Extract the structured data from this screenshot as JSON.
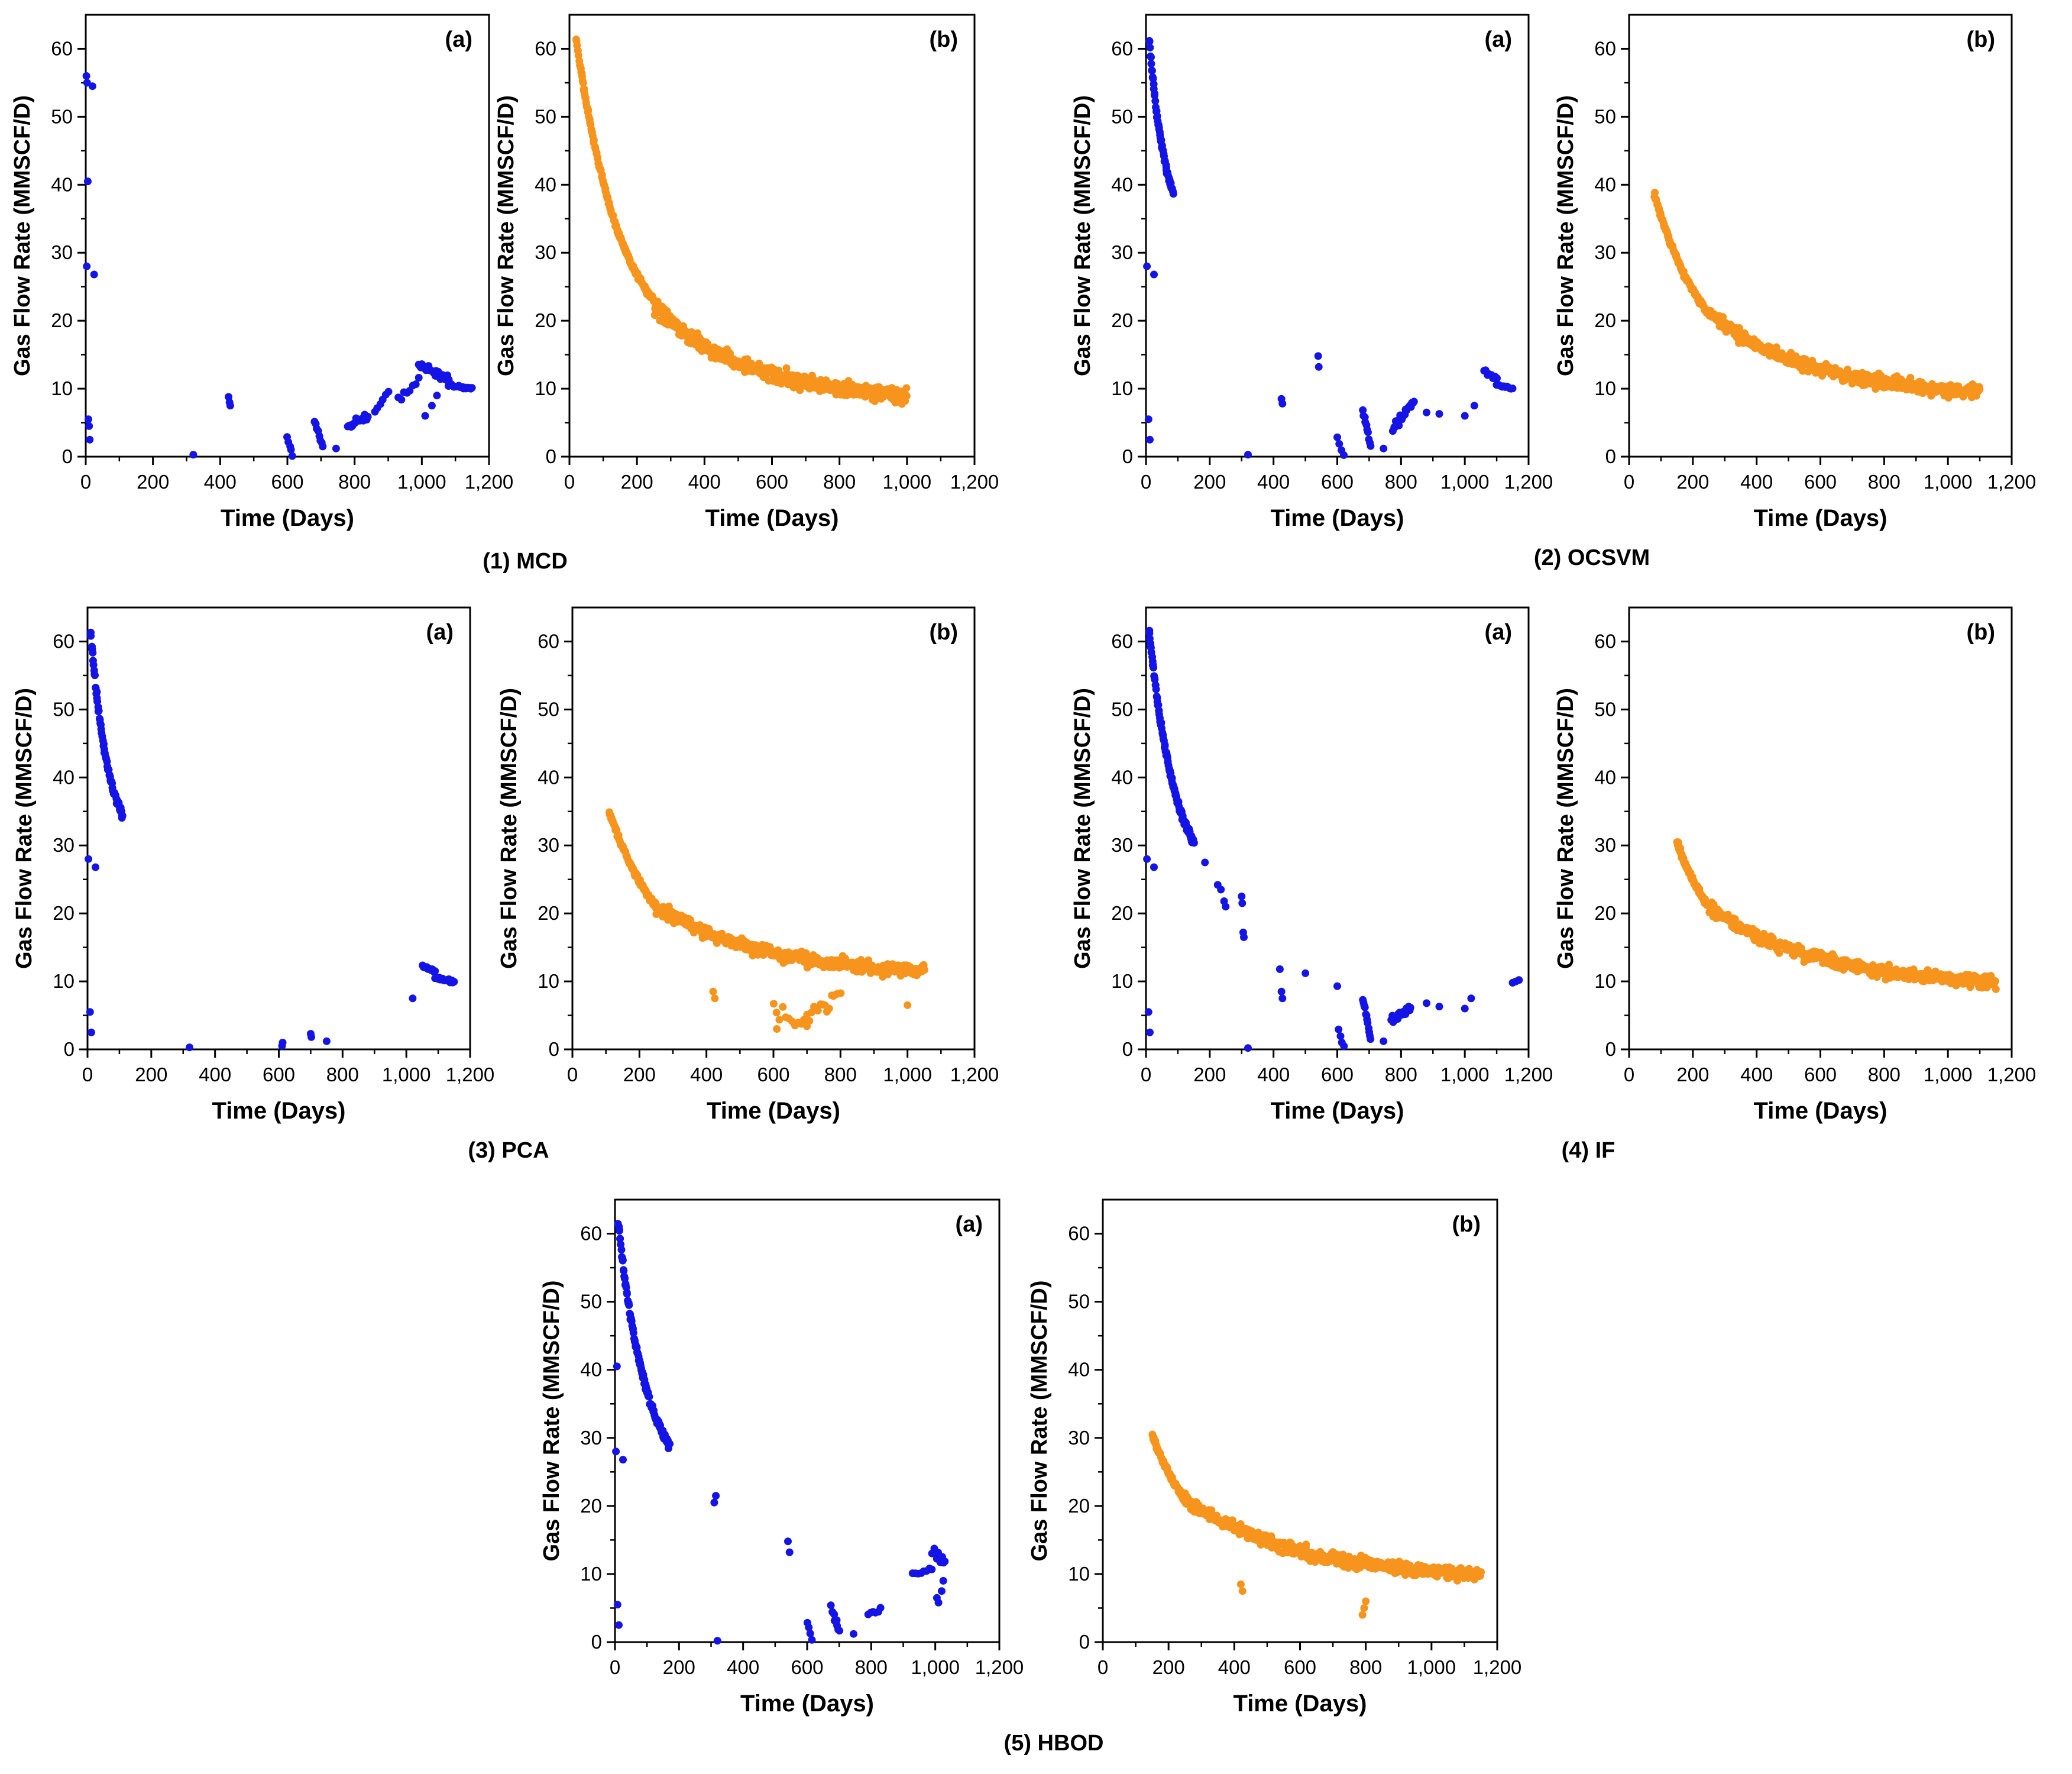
{
  "axes_common": {
    "xlabel": "Time (Days)",
    "ylabel": "Gas Flow Rate (MMSCF/D)",
    "xlim": [
      0,
      1200
    ],
    "ylim": [
      0,
      65
    ],
    "xticks": [
      0,
      200,
      400,
      600,
      800,
      1000,
      1200
    ],
    "xtick_labels": [
      "0",
      "200",
      "400",
      "600",
      "800",
      "1,000",
      "1,200"
    ],
    "yticks": [
      0,
      10,
      20,
      30,
      40,
      50,
      60
    ],
    "ytick_labels": [
      "0",
      "10",
      "20",
      "30",
      "40",
      "50",
      "60"
    ]
  },
  "colors": {
    "anomaly": "#1414e6",
    "normal": "#f7941d"
  },
  "methods": [
    {
      "id": "mcd",
      "caption": "(1) MCD"
    },
    {
      "id": "ocsvm",
      "caption": "(2) OCSVM"
    },
    {
      "id": "pca",
      "caption": "(3) PCA"
    },
    {
      "id": "if",
      "caption": "(4) IF"
    },
    {
      "id": "hbod",
      "caption": "(5) HBOD"
    }
  ],
  "chart_data": [
    {
      "type": "scatter",
      "method": "mcd",
      "panel": "(a)",
      "color": "#1414e6",
      "xlabel": "Time (Days)",
      "ylabel": "Gas Flow Rate (MMSCF/D)",
      "xlim": [
        0,
        1200
      ],
      "ylim": [
        0,
        65
      ],
      "clusters": [
        {
          "points": [
            [
              2,
              56
            ],
            [
              4,
              55
            ],
            [
              6,
              40.5
            ],
            [
              3,
              28
            ],
            [
              8,
              5.5
            ],
            [
              10,
              4.5
            ],
            [
              12,
              2.5
            ],
            [
              20,
              54.5
            ],
            [
              25,
              26.8
            ]
          ]
        },
        {
          "points": [
            [
              320,
              0.3
            ],
            [
              425,
              8.8
            ],
            [
              428,
              8.0
            ],
            [
              430,
              7.5
            ]
          ]
        },
        {
          "x0": 600,
          "x1": 615,
          "y0": 2.8,
          "y1": 0.3,
          "n": 5,
          "jitter": 0.4
        },
        {
          "x0": 680,
          "x1": 705,
          "y0": 5.2,
          "y1": 1.5,
          "n": 8,
          "jitter": 0.6
        },
        {
          "points": [
            [
              745,
              1.2
            ]
          ]
        },
        {
          "x0": 780,
          "x1": 840,
          "y0": 4.5,
          "y1": 6.0,
          "n": 18,
          "jitter": 0.8
        },
        {
          "x0": 860,
          "x1": 900,
          "y0": 6.5,
          "y1": 9.5,
          "n": 6,
          "jitter": 0.6
        },
        {
          "x0": 930,
          "x1": 990,
          "y0": 8.5,
          "y1": 11.5,
          "n": 8,
          "jitter": 0.8
        },
        {
          "x0": 990,
          "x1": 1080,
          "y0": 13.5,
          "y1": 11.5,
          "n": 30,
          "jitter": 0.8
        },
        {
          "x0": 1080,
          "x1": 1150,
          "y0": 10.5,
          "y1": 10.0,
          "n": 20,
          "jitter": 0.3
        },
        {
          "points": [
            [
              1010,
              6.0
            ],
            [
              1030,
              7.5
            ],
            [
              1045,
              9.0
            ]
          ]
        }
      ]
    },
    {
      "type": "scatter",
      "method": "mcd",
      "panel": "(b)",
      "color": "#f7941d",
      "xlabel": "Time (Days)",
      "ylabel": "Gas Flow Rate (MMSCF/D)",
      "xlim": [
        0,
        1200
      ],
      "ylim": [
        0,
        65
      ],
      "clusters": [
        {
          "curve": "decay",
          "x0": 20,
          "x1": 250,
          "y0": 61.5,
          "y1": 23,
          "k": 0.0075,
          "n": 160,
          "jitter": 0.6
        },
        {
          "curve": "decay",
          "x0": 250,
          "x1": 1000,
          "y0": 22,
          "y1": 9,
          "k": 0.0035,
          "n": 420,
          "jitter": 1.6
        }
      ]
    },
    {
      "type": "scatter",
      "method": "ocsvm",
      "panel": "(a)",
      "color": "#1414e6",
      "xlabel": "Time (Days)",
      "ylabel": "Gas Flow Rate (MMSCF/D)",
      "xlim": [
        0,
        1200
      ],
      "ylim": [
        0,
        65
      ],
      "clusters": [
        {
          "curve": "decay",
          "x0": 10,
          "x1": 85,
          "y0": 61.5,
          "y1": 39,
          "k": 0.02,
          "n": 60,
          "jitter": 0.8
        },
        {
          "points": [
            [
              3,
              28
            ],
            [
              8,
              5.5
            ],
            [
              12,
              2.5
            ],
            [
              25,
              26.8
            ]
          ]
        },
        {
          "points": [
            [
              320,
              0.3
            ],
            [
              425,
              8.5
            ],
            [
              428,
              7.8
            ],
            [
              540,
              14.8
            ],
            [
              542,
              13.2
            ]
          ]
        },
        {
          "x0": 600,
          "x1": 620,
          "y0": 2.8,
          "y1": 0.3,
          "n": 4,
          "jitter": 0.4
        },
        {
          "x0": 680,
          "x1": 705,
          "y0": 6.8,
          "y1": 1.5,
          "n": 10,
          "jitter": 0.6
        },
        {
          "points": [
            [
              745,
              1.2
            ]
          ]
        },
        {
          "x0": 775,
          "x1": 840,
          "y0": 4.0,
          "y1": 8.0,
          "n": 22,
          "jitter": 1.0
        },
        {
          "points": [
            [
              880,
              6.5
            ],
            [
              920,
              6.3
            ],
            [
              1000,
              6.0
            ],
            [
              1030,
              7.5
            ]
          ]
        },
        {
          "x0": 1060,
          "x1": 1100,
          "y0": 12.5,
          "y1": 11.5,
          "n": 8,
          "jitter": 0.4
        },
        {
          "x0": 1100,
          "x1": 1150,
          "y0": 10.5,
          "y1": 10.0,
          "n": 12,
          "jitter": 0.3
        }
      ]
    },
    {
      "type": "scatter",
      "method": "ocsvm",
      "panel": "(b)",
      "color": "#f7941d",
      "xlabel": "Time (Days)",
      "ylabel": "Gas Flow Rate (MMSCF/D)",
      "xlim": [
        0,
        1200
      ],
      "ylim": [
        0,
        65
      ],
      "clusters": [
        {
          "curve": "decay",
          "x0": 80,
          "x1": 250,
          "y0": 38.5,
          "y1": 21,
          "k": 0.006,
          "n": 110,
          "jitter": 0.6
        },
        {
          "curve": "decay",
          "x0": 250,
          "x1": 1100,
          "y0": 21,
          "y1": 9.5,
          "k": 0.003,
          "n": 430,
          "jitter": 1.4
        }
      ]
    },
    {
      "type": "scatter",
      "method": "pca",
      "panel": "(a)",
      "color": "#1414e6",
      "xlabel": "Time (Days)",
      "ylabel": "Gas Flow Rate (MMSCF/D)",
      "xlim": [
        0,
        1200
      ],
      "ylim": [
        0,
        65
      ],
      "clusters": [
        {
          "curve": "decay",
          "x0": 10,
          "x1": 110,
          "y0": 61.5,
          "y1": 34.5,
          "k": 0.018,
          "n": 70,
          "jitter": 0.8
        },
        {
          "points": [
            [
              3,
              28
            ],
            [
              8,
              5.5
            ],
            [
              12,
              2.5
            ],
            [
              25,
              26.8
            ]
          ]
        },
        {
          "points": [
            [
              320,
              0.3
            ],
            [
              610,
              0.5
            ],
            [
              612,
              1.0
            ],
            [
              700,
              2.3
            ],
            [
              702,
              1.8
            ],
            [
              750,
              1.2
            ]
          ]
        },
        {
          "points": [
            [
              1020,
              7.5
            ]
          ]
        },
        {
          "x0": 1050,
          "x1": 1090,
          "y0": 12.3,
          "y1": 11.5,
          "n": 10,
          "jitter": 0.3
        },
        {
          "x0": 1090,
          "x1": 1150,
          "y0": 10.5,
          "y1": 10.0,
          "n": 16,
          "jitter": 0.3
        }
      ]
    },
    {
      "type": "scatter",
      "method": "pca",
      "panel": "(b)",
      "color": "#f7941d",
      "xlabel": "Time (Days)",
      "ylabel": "Gas Flow Rate (MMSCF/D)",
      "xlim": [
        0,
        1200
      ],
      "ylim": [
        0,
        65
      ],
      "clusters": [
        {
          "curve": "decay",
          "x0": 110,
          "x1": 250,
          "y0": 35,
          "y1": 21,
          "k": 0.006,
          "n": 90,
          "jitter": 0.6
        },
        {
          "curve": "decay",
          "x0": 250,
          "x1": 1050,
          "y0": 21,
          "y1": 11.5,
          "k": 0.003,
          "n": 380,
          "jitter": 1.4
        },
        {
          "x0": 600,
          "x1": 700,
          "y0": 6.0,
          "y1": 3.5,
          "n": 12,
          "jitter": 1.5
        },
        {
          "x0": 700,
          "x1": 800,
          "y0": 5.0,
          "y1": 8.0,
          "n": 16,
          "jitter": 1.5
        },
        {
          "points": [
            [
              420,
              8.5
            ],
            [
              425,
              7.5
            ],
            [
              610,
              3.0
            ],
            [
              1000,
              6.5
            ]
          ]
        }
      ]
    },
    {
      "type": "scatter",
      "method": "if",
      "panel": "(a)",
      "color": "#1414e6",
      "xlabel": "Time (Days)",
      "ylabel": "Gas Flow Rate (MMSCF/D)",
      "xlim": [
        0,
        1200
      ],
      "ylim": [
        0,
        65
      ],
      "clusters": [
        {
          "curve": "decay",
          "x0": 10,
          "x1": 150,
          "y0": 61.5,
          "y1": 30.5,
          "k": 0.012,
          "n": 110,
          "jitter": 0.8
        },
        {
          "points": [
            [
              3,
              28
            ],
            [
              8,
              5.5
            ],
            [
              12,
              2.5
            ],
            [
              25,
              26.8
            ]
          ]
        },
        {
          "points": [
            [
              185,
              27.5
            ],
            [
              225,
              24.2
            ],
            [
              235,
              23.5
            ],
            [
              245,
              21.8
            ],
            [
              250,
              21.0
            ],
            [
              300,
              22.5
            ],
            [
              302,
              21.5
            ],
            [
              305,
              17.2
            ],
            [
              307,
              16.5
            ]
          ]
        },
        {
          "points": [
            [
              320,
              0.2
            ],
            [
              420,
              11.8
            ],
            [
              425,
              8.5
            ],
            [
              428,
              7.5
            ],
            [
              500,
              11.2
            ],
            [
              600,
              9.3
            ]
          ]
        },
        {
          "x0": 605,
          "x1": 620,
          "y0": 2.8,
          "y1": 0.3,
          "n": 4,
          "jitter": 0.4
        },
        {
          "x0": 680,
          "x1": 705,
          "y0": 7.5,
          "y1": 1.5,
          "n": 12,
          "jitter": 0.6
        },
        {
          "points": [
            [
              745,
              1.2
            ]
          ]
        },
        {
          "x0": 770,
          "x1": 830,
          "y0": 4.5,
          "y1": 6.0,
          "n": 20,
          "jitter": 0.8
        },
        {
          "points": [
            [
              880,
              6.8
            ],
            [
              920,
              6.3
            ],
            [
              1000,
              6.0
            ],
            [
              1020,
              7.5
            ],
            [
              1150,
              9.8
            ],
            [
              1160,
              10.0
            ],
            [
              1170,
              10.2
            ]
          ]
        }
      ]
    },
    {
      "type": "scatter",
      "method": "if",
      "panel": "(b)",
      "color": "#f7941d",
      "xlabel": "Time (Days)",
      "ylabel": "Gas Flow Rate (MMSCF/D)",
      "xlim": [
        0,
        1200
      ],
      "ylim": [
        0,
        65
      ],
      "clusters": [
        {
          "curve": "decay",
          "x0": 150,
          "x1": 250,
          "y0": 30.5,
          "y1": 21,
          "k": 0.007,
          "n": 70,
          "jitter": 0.6
        },
        {
          "curve": "decay",
          "x0": 250,
          "x1": 1150,
          "y0": 21,
          "y1": 10,
          "k": 0.003,
          "n": 430,
          "jitter": 1.4
        }
      ]
    },
    {
      "type": "scatter",
      "method": "hbod",
      "panel": "(a)",
      "color": "#1414e6",
      "xlabel": "Time (Days)",
      "ylabel": "Gas Flow Rate (MMSCF/D)",
      "xlim": [
        0,
        1200
      ],
      "ylim": [
        0,
        65
      ],
      "clusters": [
        {
          "curve": "decay",
          "x0": 10,
          "x1": 170,
          "y0": 61.5,
          "y1": 29,
          "k": 0.011,
          "n": 120,
          "jitter": 0.8
        },
        {
          "points": [
            [
              3,
              28
            ],
            [
              6,
              40.5
            ],
            [
              8,
              5.5
            ],
            [
              12,
              2.5
            ],
            [
              25,
              26.8
            ]
          ]
        },
        {
          "points": [
            [
              310,
              20.5
            ],
            [
              315,
              21.5
            ],
            [
              320,
              0.2
            ],
            [
              540,
              14.8
            ],
            [
              545,
              13.2
            ]
          ]
        },
        {
          "x0": 600,
          "x1": 615,
          "y0": 2.8,
          "y1": 0.3,
          "n": 4,
          "jitter": 0.4
        },
        {
          "x0": 675,
          "x1": 700,
          "y0": 5.2,
          "y1": 1.5,
          "n": 10,
          "jitter": 0.6
        },
        {
          "points": [
            [
              745,
              1.2
            ]
          ]
        },
        {
          "x0": 790,
          "x1": 830,
          "y0": 4.0,
          "y1": 4.8,
          "n": 6,
          "jitter": 0.4
        },
        {
          "x0": 930,
          "x1": 990,
          "y0": 9.8,
          "y1": 10.8,
          "n": 8,
          "jitter": 0.5
        },
        {
          "x0": 990,
          "x1": 1030,
          "y0": 13.5,
          "y1": 11.5,
          "n": 12,
          "jitter": 1.2
        },
        {
          "points": [
            [
              1005,
              6.5
            ],
            [
              1010,
              5.8
            ],
            [
              1020,
              7.5
            ],
            [
              1025,
              9.0
            ]
          ]
        }
      ]
    },
    {
      "type": "scatter",
      "method": "hbod",
      "panel": "(b)",
      "color": "#f7941d",
      "xlabel": "Time (Days)",
      "ylabel": "Gas Flow Rate (MMSCF/D)",
      "xlim": [
        0,
        1200
      ],
      "ylim": [
        0,
        65
      ],
      "clusters": [
        {
          "curve": "decay",
          "x0": 150,
          "x1": 250,
          "y0": 30.5,
          "y1": 21,
          "k": 0.007,
          "n": 70,
          "jitter": 0.6
        },
        {
          "curve": "decay",
          "x0": 250,
          "x1": 1150,
          "y0": 21,
          "y1": 10,
          "k": 0.003,
          "n": 430,
          "jitter": 1.4
        },
        {
          "points": [
            [
              420,
              8.5
            ],
            [
              425,
              7.5
            ],
            [
              790,
              4.0
            ],
            [
              795,
              5.0
            ],
            [
              800,
              6.0
            ]
          ]
        }
      ]
    }
  ]
}
